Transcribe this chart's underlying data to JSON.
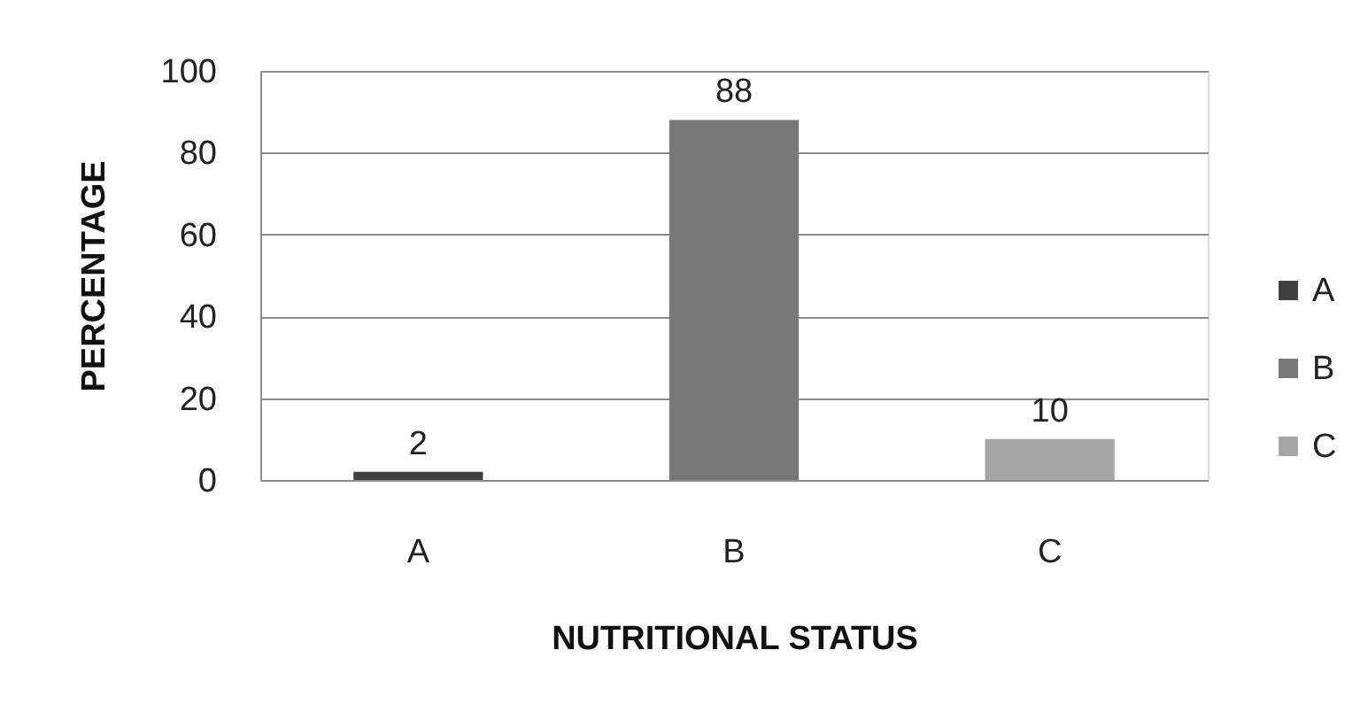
{
  "chart_data": {
    "type": "bar",
    "xlabel": "NUTRITIONAL STATUS",
    "ylabel": "PERCENTAGE",
    "categories": [
      "A",
      "B",
      "C"
    ],
    "stacked": true,
    "series": [
      {
        "name": "A",
        "color": "#404040",
        "values": [
          2,
          null,
          null
        ]
      },
      {
        "name": "B",
        "color": "#777777",
        "values": [
          null,
          88,
          null
        ]
      },
      {
        "name": "C",
        "color": "#a6a6a6",
        "values": [
          null,
          null,
          10
        ]
      }
    ],
    "ylim": [
      0,
      100
    ],
    "yticks": [
      0,
      20,
      40,
      60,
      80,
      100
    ],
    "grid": "y",
    "legend": "right",
    "data_labels": true
  }
}
